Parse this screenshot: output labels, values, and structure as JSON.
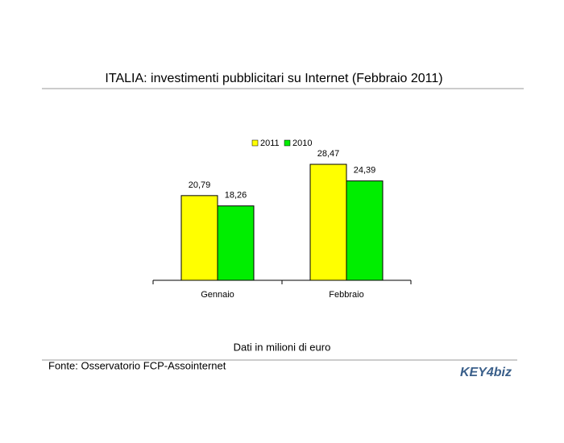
{
  "chart_data": {
    "type": "bar",
    "title": "ITALIA: investimenti pubblicitari su Internet (Febbraio 2011)",
    "categories": [
      "Gennaio",
      "Febbraio"
    ],
    "series": [
      {
        "name": "2011",
        "color": "#ffff00",
        "values": [
          20.79,
          28.47
        ],
        "value_labels": [
          "20,79",
          "28,47"
        ]
      },
      {
        "name": "2010",
        "color": "#00ee00",
        "values": [
          18.26,
          24.39
        ],
        "value_labels": [
          "18,26",
          "24,39"
        ]
      }
    ],
    "legend": "top",
    "note": "Dati in milioni di euro",
    "source": "Fonte: Osservatorio FCP-Assointernet",
    "logo": "KEY4biz"
  }
}
